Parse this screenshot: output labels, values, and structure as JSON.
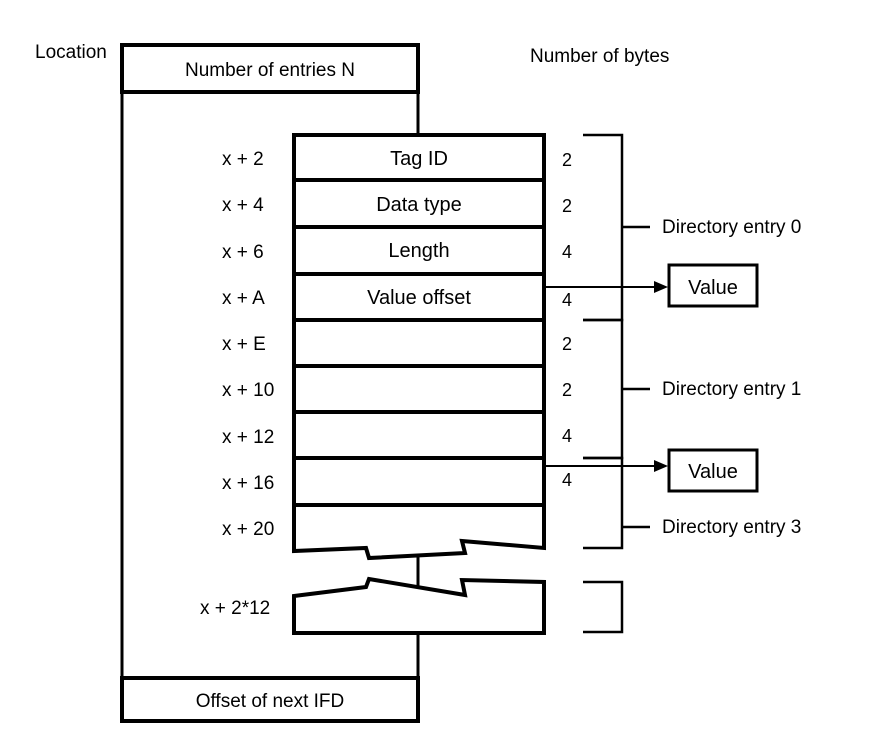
{
  "header": {
    "location_label": "Location",
    "bytes_label": "Number of bytes"
  },
  "ifd": {
    "entries_count_label": "Number of entries N",
    "next_ifd_label": "Offset of next IFD"
  },
  "rows": [
    {
      "location": "x + 2",
      "field": "Tag ID",
      "bytes": "2"
    },
    {
      "location": "x + 4",
      "field": "Data type",
      "bytes": "2"
    },
    {
      "location": "x + 6",
      "field": "Length",
      "bytes": "4"
    },
    {
      "location": "x + A",
      "field": "Value offset",
      "bytes": "4"
    },
    {
      "location": "x + E",
      "field": "",
      "bytes": "2"
    },
    {
      "location": "x + 10",
      "field": "",
      "bytes": "2"
    },
    {
      "location": "x + 12",
      "field": "",
      "bytes": "4"
    },
    {
      "location": "x + 16",
      "field": "",
      "bytes": "4"
    },
    {
      "location": "x + 20",
      "field": "",
      "bytes": ""
    }
  ],
  "last_row": {
    "location": "x + 2*12"
  },
  "directory_entries": [
    "Directory entry 0",
    "Directory entry 1",
    "Directory entry 3"
  ],
  "value_boxes": [
    "Value",
    "Value"
  ]
}
